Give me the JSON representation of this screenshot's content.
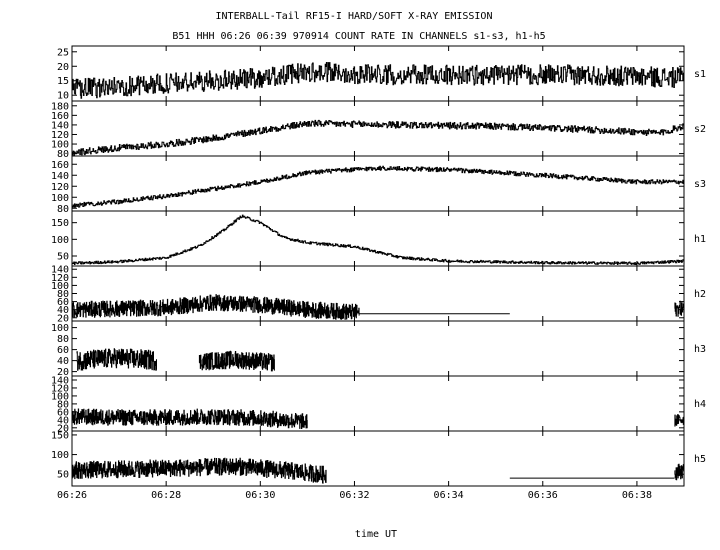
{
  "chart_data": {
    "type": "line",
    "title": "INTERBALL-Tail RF15-I HARD/SOFT X-RAY EMISSION",
    "subtitle": "B51 HHH 06:26 06:39 970914  COUNT RATE IN CHANNELS s1-s3, h1-h5",
    "xlabel": "time UT",
    "x_ticks": [
      "06:26",
      "06:28",
      "06:30",
      "06:32",
      "06:34",
      "06:36",
      "06:38"
    ],
    "x_range": [
      "06:26",
      "06:39"
    ],
    "grid": false,
    "panels": [
      {
        "name": "s1",
        "ylim": [
          8,
          27
        ],
        "yticks": [
          10,
          15,
          20,
          25
        ],
        "segments": [
          {
            "x": [
              "06:26",
              "06:28",
              "06:30",
              "06:31",
              "06:33",
              "06:35",
              "06:37",
              "06:39"
            ],
            "y": [
              12,
              14,
              16,
              18,
              17,
              17,
              17,
              16
            ],
            "noise": 3.5,
            "step": 0.6
          }
        ]
      },
      {
        "name": "s2",
        "ylim": [
          75,
          190
        ],
        "yticks": [
          80,
          100,
          120,
          140,
          160,
          180
        ],
        "segments": [
          {
            "x": [
              "06:26",
              "06:27",
              "06:28",
              "06:29",
              "06:30",
              "06:31",
              "06:33",
              "06:35",
              "06:37",
              "06:38.5",
              "06:39"
            ],
            "y": [
              82,
              92,
              100,
              112,
              128,
              143,
              140,
              137,
              130,
              123,
              138
            ],
            "noise": 7,
            "step": 0.6
          }
        ]
      },
      {
        "name": "s3",
        "ylim": [
          75,
          175
        ],
        "yticks": [
          80,
          100,
          120,
          140,
          160
        ],
        "segments": [
          {
            "x": [
              "06:26",
              "06:27",
              "06:28",
              "06:29",
              "06:30",
              "06:31",
              "06:32.5",
              "06:34",
              "06:36",
              "06:38",
              "06:39"
            ],
            "y": [
              85,
              92,
              102,
              115,
              128,
              145,
              153,
              150,
              140,
              128,
              128
            ],
            "noise": 4,
            "step": 0.6
          }
        ]
      },
      {
        "name": "h1",
        "ylim": [
          20,
          185
        ],
        "yticks": [
          50,
          100,
          150
        ],
        "segments": [
          {
            "x": [
              "06:26",
              "06:27",
              "06:28",
              "06:28.7",
              "06:29.2",
              "06:29.6",
              "06:30",
              "06:30.5",
              "06:31",
              "06:32",
              "06:33",
              "06:34",
              "06:36",
              "06:38",
              "06:39"
            ],
            "y": [
              28,
              33,
              45,
              80,
              125,
              170,
              150,
              105,
              90,
              78,
              45,
              35,
              30,
              28,
              35
            ],
            "noise": 4,
            "step": 0.6
          }
        ]
      },
      {
        "name": "h2",
        "ylim": [
          12,
          148
        ],
        "yticks": [
          20,
          40,
          60,
          80,
          100,
          120,
          140
        ],
        "segments": [
          {
            "x": [
              "06:26",
              "06:28",
              "06:29",
              "06:30",
              "06:31",
              "06:32.1"
            ],
            "y": [
              40,
              45,
              58,
              52,
              40,
              33
            ],
            "noise": 20,
            "step": 0.3
          },
          {
            "x": [
              "06:32.1",
              "06:35.3"
            ],
            "y": [
              30,
              30
            ],
            "noise": 0
          },
          {
            "x": [
              "06:38.8",
              "06:39"
            ],
            "y": [
              40,
              45
            ],
            "noise": 18,
            "step": 0.3
          }
        ]
      },
      {
        "name": "h3",
        "ylim": [
          12,
          112
        ],
        "yticks": [
          20,
          40,
          60,
          80,
          100
        ],
        "segments": [
          {
            "x": [
              "06:26.1",
              "06:27",
              "06:27.8"
            ],
            "y": [
              40,
              45,
              40
            ],
            "noise": 18,
            "step": 0.3
          },
          {
            "x": [
              "06:28.7",
              "06:29.5",
              "06:30.3"
            ],
            "y": [
              38,
              42,
              36
            ],
            "noise": 16,
            "step": 0.3
          }
        ]
      },
      {
        "name": "h4",
        "ylim": [
          12,
          150
        ],
        "yticks": [
          20,
          40,
          60,
          80,
          100,
          120,
          140
        ],
        "segments": [
          {
            "x": [
              "06:26",
              "06:27.5",
              "06:29",
              "06:30",
              "06:31"
            ],
            "y": [
              48,
              45,
              48,
              44,
              35
            ],
            "noise": 20,
            "step": 0.3
          },
          {
            "x": [
              "06:38.8",
              "06:39"
            ],
            "y": [
              38,
              42
            ],
            "noise": 15,
            "step": 0.3
          }
        ]
      },
      {
        "name": "h5",
        "ylim": [
          20,
          160
        ],
        "yticks": [
          50,
          100,
          150
        ],
        "segments": [
          {
            "x": [
              "06:26",
              "06:28",
              "06:29.5",
              "06:30.5",
              "06:31.4"
            ],
            "y": [
              60,
              65,
              70,
              60,
              48
            ],
            "noise": 22,
            "step": 0.3
          },
          {
            "x": [
              "06:35.3",
              "06:38.8"
            ],
            "y": [
              40,
              40
            ],
            "noise": 0
          },
          {
            "x": [
              "06:38.8",
              "06:39"
            ],
            "y": [
              55,
              60
            ],
            "noise": 20,
            "step": 0.3
          }
        ]
      }
    ]
  }
}
